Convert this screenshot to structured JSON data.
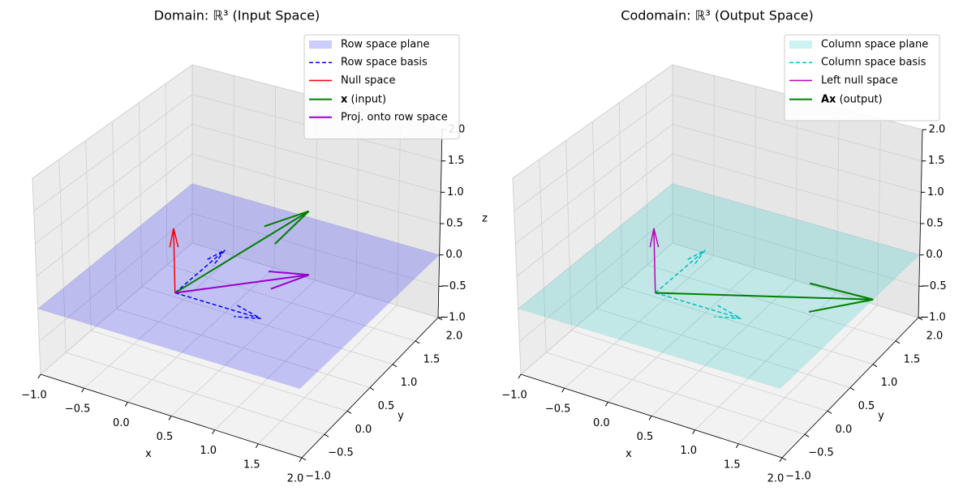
{
  "chart_data": [
    {
      "type": "vector3d",
      "title": "Domain: ℝ³ (Input Space)",
      "xlabel": "x",
      "ylabel": "y",
      "zlabel": "z",
      "xlim": [
        -1,
        2
      ],
      "ylim": [
        -1,
        2
      ],
      "zlim": [
        -1,
        2
      ],
      "xticks": [
        {
          "value": -1,
          "label": "−1.0"
        },
        {
          "value": -0.5,
          "label": "−0.5"
        },
        {
          "value": 0,
          "label": "0.0"
        },
        {
          "value": 0.5,
          "label": "0.5"
        },
        {
          "value": 1,
          "label": "1.0"
        },
        {
          "value": 1.5,
          "label": "1.5"
        },
        {
          "value": 2,
          "label": "2.0"
        }
      ],
      "yticks": [
        {
          "value": -1,
          "label": "−1.0"
        },
        {
          "value": -0.5,
          "label": "−0.5"
        },
        {
          "value": 0,
          "label": "0.0"
        },
        {
          "value": 0.5,
          "label": "0.5"
        },
        {
          "value": 1,
          "label": "1.0"
        },
        {
          "value": 1.5,
          "label": "1.5"
        },
        {
          "value": 2,
          "label": "2.0"
        }
      ],
      "zticks": [
        {
          "value": -1,
          "label": "−1.0"
        },
        {
          "value": -0.5,
          "label": "−0.5"
        },
        {
          "value": 0,
          "label": "0.0"
        },
        {
          "value": 0.5,
          "label": "0.5"
        },
        {
          "value": 1,
          "label": "1.0"
        },
        {
          "value": 1.5,
          "label": "1.5"
        },
        {
          "value": 2,
          "label": "2.0"
        }
      ],
      "grid": true,
      "legend": "upper right",
      "series": [
        {
          "name": "Row space plane",
          "color": "#0000ff",
          "alpha": 0.2,
          "style": "plane",
          "z": 0
        },
        {
          "name": "Row space basis",
          "color": "#0000ff",
          "style": "dashed",
          "linewidth": 1.5,
          "vectors": [
            [
              1,
              0,
              0
            ],
            [
              0,
              1,
              0
            ]
          ]
        },
        {
          "name": "Null space",
          "color": "#ff0000",
          "style": "solid",
          "linewidth": 1.5,
          "vectors": [
            [
              0,
              0,
              1
            ]
          ]
        },
        {
          "name": "x (input)",
          "color": "#008000",
          "style": "solid",
          "linewidth": 2,
          "bold_first_word": true,
          "vectors": [
            [
              1,
              1,
              1
            ]
          ]
        },
        {
          "name": "Proj. onto row space",
          "color": "#9900cc",
          "style": "solid",
          "linewidth": 2,
          "vectors": [
            [
              1,
              1,
              0
            ]
          ]
        }
      ]
    },
    {
      "type": "vector3d",
      "title": "Codomain: ℝ³ (Output Space)",
      "xlabel": "x",
      "ylabel": "y",
      "xlim": [
        -1,
        2
      ],
      "ylim": [
        -1,
        2
      ],
      "zlim": [
        -1,
        2
      ],
      "xticks": [
        {
          "value": -1,
          "label": "−1.0"
        },
        {
          "value": -0.5,
          "label": "−0.5"
        },
        {
          "value": 0,
          "label": "0.0"
        },
        {
          "value": 0.5,
          "label": "0.5"
        },
        {
          "value": 1,
          "label": "1.0"
        },
        {
          "value": 1.5,
          "label": "1.5"
        },
        {
          "value": 2,
          "label": "2.0"
        }
      ],
      "yticks": [
        {
          "value": -1,
          "label": "−1.0"
        },
        {
          "value": -0.5,
          "label": "−0.5"
        },
        {
          "value": 0,
          "label": "0.0"
        },
        {
          "value": 0.5,
          "label": "0.5"
        },
        {
          "value": 1,
          "label": "1.0"
        },
        {
          "value": 1.5,
          "label": "1.5"
        },
        {
          "value": 2,
          "label": "2.0"
        }
      ],
      "zticks": [
        {
          "value": -1,
          "label": "−1.0"
        },
        {
          "value": -0.5,
          "label": "−0.5"
        },
        {
          "value": 0,
          "label": "0.0"
        },
        {
          "value": 0.5,
          "label": "0.5"
        },
        {
          "value": 1,
          "label": "1.0"
        },
        {
          "value": 1.5,
          "label": "1.5"
        },
        {
          "value": 2,
          "label": "2.0"
        }
      ],
      "grid": true,
      "legend": "upper right",
      "series": [
        {
          "name": "Column space plane",
          "color": "#00bfbf",
          "alpha": 0.2,
          "style": "plane",
          "z": 0
        },
        {
          "name": "Column space basis",
          "color": "#00bfbf",
          "style": "dashed",
          "linewidth": 1.5,
          "vectors": [
            [
              1,
              0,
              0
            ],
            [
              0,
              1,
              0
            ]
          ]
        },
        {
          "name": "Left null space",
          "color": "#bf00bf",
          "style": "solid",
          "linewidth": 1.5,
          "vectors": [
            [
              0,
              0,
              1
            ]
          ]
        },
        {
          "name": "Ax (output)",
          "color": "#008000",
          "style": "solid",
          "linewidth": 2,
          "bold_first_word": true,
          "vectors": [
            [
              2,
              1,
              0
            ]
          ]
        }
      ]
    }
  ]
}
